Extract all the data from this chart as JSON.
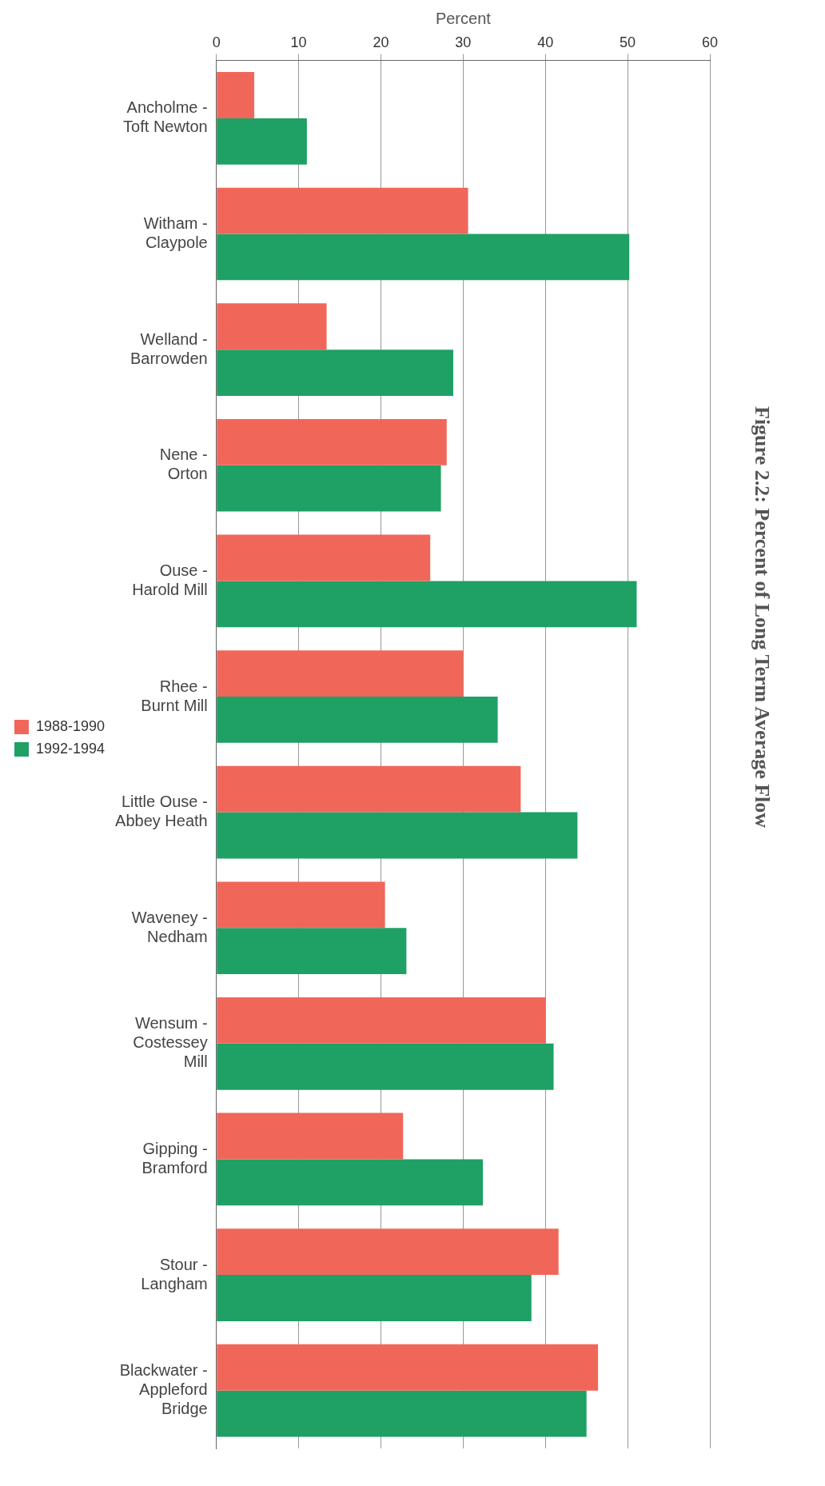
{
  "chart_data": {
    "type": "bar",
    "orientation": "horizontal",
    "title": "Figure 2.2: Percent of Long Term Average Flow",
    "xlabel": "Percent",
    "categories": [
      "Ancholme - Toft Newton",
      "Witham - Claypole",
      "Welland - Barrowden",
      "Nene - Orton",
      "Ouse - Harold Mill",
      "Rhee - Burnt Mill",
      "Little Ouse - Abbey Heath",
      "Waveney - Nedham",
      "Wensum - Costessey Mill",
      "Gipping - Bramford",
      "Stour - Langham",
      "Blackwater - Appleford Bridge"
    ],
    "series": [
      {
        "name": "1988-1990",
        "color": "#f0675a",
        "values": [
          4.6,
          30.6,
          13.4,
          28,
          26,
          30,
          37,
          20.5,
          40,
          22.7,
          41.6,
          46.4
        ]
      },
      {
        "name": "1992-1994",
        "color": "#1fa065",
        "values": [
          11,
          50.2,
          28.8,
          27.3,
          51.1,
          34.2,
          43.9,
          23.1,
          41,
          32.4,
          38.3,
          45
        ]
      }
    ],
    "xlim": [
      0,
      60
    ],
    "xticks": [
      0,
      10,
      20,
      30,
      40,
      50,
      60
    ],
    "grid": "x",
    "legend": "left"
  }
}
